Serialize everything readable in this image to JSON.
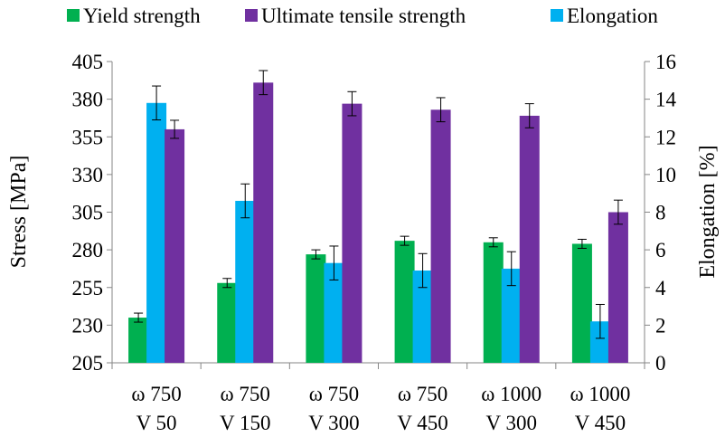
{
  "chart_data": {
    "type": "bar",
    "categories": [
      [
        "ω 750",
        "V 50"
      ],
      [
        "ω 750",
        "V 150"
      ],
      [
        "ω 750",
        "V 300"
      ],
      [
        "ω 750",
        "V 450"
      ],
      [
        "ω 1000",
        "V 300"
      ],
      [
        "ω 1000",
        "V 450"
      ]
    ],
    "ylabel": "Stress [MPa]",
    "y2label": "Elongation [%]",
    "ylim": [
      205,
      405
    ],
    "y_ticks": [
      205,
      230,
      255,
      280,
      305,
      330,
      355,
      380,
      405
    ],
    "y2lim": [
      0,
      16
    ],
    "y2_ticks": [
      0,
      2,
      4,
      6,
      8,
      10,
      12,
      14,
      16
    ],
    "legend_position": "top",
    "grid": false,
    "error_bars": true,
    "series": [
      {
        "name": "Yield strength",
        "axis": "left",
        "color": "#00b050",
        "values": [
          235,
          258,
          277,
          286,
          285,
          284
        ],
        "errors": [
          3,
          3,
          3,
          3,
          3,
          3
        ]
      },
      {
        "name": "Ultimate tensile strength",
        "axis": "left",
        "color": "#7030a0",
        "values": [
          360,
          391,
          377,
          373,
          369,
          305
        ],
        "errors": [
          6,
          8,
          8,
          8,
          8,
          8
        ]
      },
      {
        "name": "Elongation",
        "axis": "right",
        "color": "#00b0f0",
        "values": [
          13.8,
          8.6,
          5.3,
          4.9,
          5.0,
          2.2
        ],
        "errors": [
          0.9,
          0.9,
          0.9,
          0.9,
          0.9,
          0.9
        ]
      }
    ]
  }
}
